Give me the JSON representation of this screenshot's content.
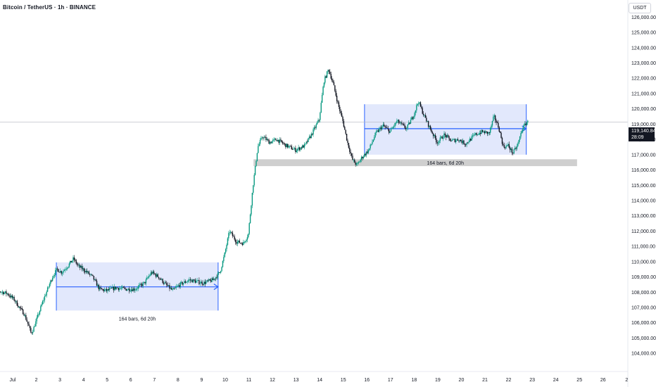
{
  "header": {
    "symbol_title": "Bitcoin / TetherUS · 1h · BINANCE",
    "currency": "USDT"
  },
  "price_badge": {
    "price": "119,140.84",
    "countdown": "28:09"
  },
  "colors": {
    "up": "#089981",
    "down": "#131722",
    "range_fill": "#dde4fb",
    "range_line": "#2962ff",
    "support_zone": "#cfcfcf"
  },
  "chart_data": {
    "type": "candlestick",
    "symbol": "Bitcoin / TetherUS",
    "interval": "1h",
    "exchange": "BINANCE",
    "last_price": 119140.84,
    "ylim": [
      103500,
      126800
    ],
    "xlim": [
      0.0,
      27.7
    ],
    "y_ticks": [
      126000,
      125000,
      124000,
      123000,
      122000,
      121000,
      120000,
      119000,
      118000,
      117000,
      116000,
      115000,
      114000,
      113000,
      112000,
      111000,
      110000,
      109000,
      108000,
      107000,
      106000,
      105000,
      104000
    ],
    "y_tick_labels": [
      "126,000.00",
      "125,000.00",
      "124,000.00",
      "123,000.00",
      "122,000.00",
      "121,000.00",
      "120,000.00",
      "119,000.00",
      "118,000.00",
      "117,000.00",
      "116,000.00",
      "115,000.00",
      "114,000.00",
      "113,000.00",
      "112,000.00",
      "111,000.00",
      "110,000.00",
      "109,000.00",
      "108,000.00",
      "107,000.00",
      "106,000.00",
      "105,000.00",
      "104,000.00"
    ],
    "x_ticks": [
      1,
      2,
      3,
      4,
      5,
      6,
      7,
      8,
      9,
      10,
      11,
      12,
      13,
      14,
      15,
      16,
      17,
      18,
      19,
      20,
      21,
      22,
      23,
      24,
      25,
      26,
      27
    ],
    "x_tick_labels": [
      "Jul",
      "2",
      "3",
      "4",
      "5",
      "6",
      "7",
      "8",
      "9",
      "10",
      "11",
      "12",
      "13",
      "14",
      "15",
      "16",
      "17",
      "18",
      "19",
      "20",
      "21",
      "22",
      "23",
      "24",
      "25",
      "26",
      "2"
    ],
    "price_path": [
      [
        0.0,
        108400
      ],
      [
        0.4,
        108100
      ],
      [
        0.8,
        107900
      ],
      [
        1.1,
        107500
      ],
      [
        1.3,
        107000
      ],
      [
        1.5,
        106600
      ],
      [
        1.7,
        105800
      ],
      [
        1.8,
        105300
      ],
      [
        1.9,
        105600
      ],
      [
        2.1,
        106500
      ],
      [
        2.3,
        107400
      ],
      [
        2.5,
        108200
      ],
      [
        2.7,
        109000
      ],
      [
        2.9,
        109500
      ],
      [
        3.1,
        109300
      ],
      [
        3.4,
        109800
      ],
      [
        3.6,
        110200
      ],
      [
        3.8,
        109700
      ],
      [
        4.1,
        109400
      ],
      [
        4.4,
        109000
      ],
      [
        4.7,
        108200
      ],
      [
        5.0,
        108100
      ],
      [
        5.4,
        108300
      ],
      [
        5.8,
        108200
      ],
      [
        6.2,
        108200
      ],
      [
        6.6,
        108600
      ],
      [
        6.9,
        109300
      ],
      [
        7.2,
        109000
      ],
      [
        7.5,
        108500
      ],
      [
        7.8,
        108100
      ],
      [
        8.1,
        108500
      ],
      [
        8.5,
        108800
      ],
      [
        8.8,
        108700
      ],
      [
        9.1,
        108600
      ],
      [
        9.5,
        108800
      ],
      [
        9.8,
        109300
      ],
      [
        10.0,
        110500
      ],
      [
        10.2,
        112000
      ],
      [
        10.5,
        111300
      ],
      [
        10.8,
        111200
      ],
      [
        11.0,
        111800
      ],
      [
        11.2,
        115000
      ],
      [
        11.4,
        117500
      ],
      [
        11.6,
        118200
      ],
      [
        11.9,
        117800
      ],
      [
        12.2,
        118000
      ],
      [
        12.6,
        117600
      ],
      [
        13.0,
        117300
      ],
      [
        13.4,
        117600
      ],
      [
        13.7,
        118400
      ],
      [
        14.0,
        119300
      ],
      [
        14.2,
        121800
      ],
      [
        14.4,
        122600
      ],
      [
        14.6,
        121600
      ],
      [
        14.8,
        120300
      ],
      [
        15.0,
        119200
      ],
      [
        15.2,
        117800
      ],
      [
        15.4,
        116700
      ],
      [
        15.6,
        116300
      ],
      [
        15.8,
        116800
      ],
      [
        16.1,
        117300
      ],
      [
        16.4,
        118400
      ],
      [
        16.7,
        118900
      ],
      [
        17.0,
        118500
      ],
      [
        17.3,
        119200
      ],
      [
        17.7,
        118700
      ],
      [
        18.0,
        119600
      ],
      [
        18.2,
        120500
      ],
      [
        18.4,
        119700
      ],
      [
        18.7,
        118700
      ],
      [
        19.0,
        117800
      ],
      [
        19.3,
        118300
      ],
      [
        19.6,
        117900
      ],
      [
        19.9,
        118000
      ],
      [
        20.2,
        117700
      ],
      [
        20.6,
        118300
      ],
      [
        20.9,
        118500
      ],
      [
        21.2,
        118400
      ],
      [
        21.4,
        119500
      ],
      [
        21.6,
        118800
      ],
      [
        21.8,
        117500
      ],
      [
        22.0,
        117600
      ],
      [
        22.2,
        117100
      ],
      [
        22.4,
        117600
      ],
      [
        22.6,
        118700
      ],
      [
        22.8,
        119140
      ]
    ],
    "annotations": [
      {
        "type": "date_price_range",
        "x_start": 2.85,
        "x_end": 9.7,
        "y_top": 109950,
        "y_bottom": 106800,
        "y_mid": 108350,
        "label": "164 bars, 6d 20h"
      },
      {
        "type": "date_price_range",
        "x_start": 15.9,
        "x_end": 22.75,
        "y_top": 120300,
        "y_bottom": 117000,
        "y_mid": 118700,
        "label": "164 bars, 6d 20h"
      },
      {
        "type": "support_zone",
        "x_start": 11.2,
        "x_end": 24.9,
        "y_top": 116700,
        "y_bottom": 116250
      }
    ],
    "grid": false
  }
}
